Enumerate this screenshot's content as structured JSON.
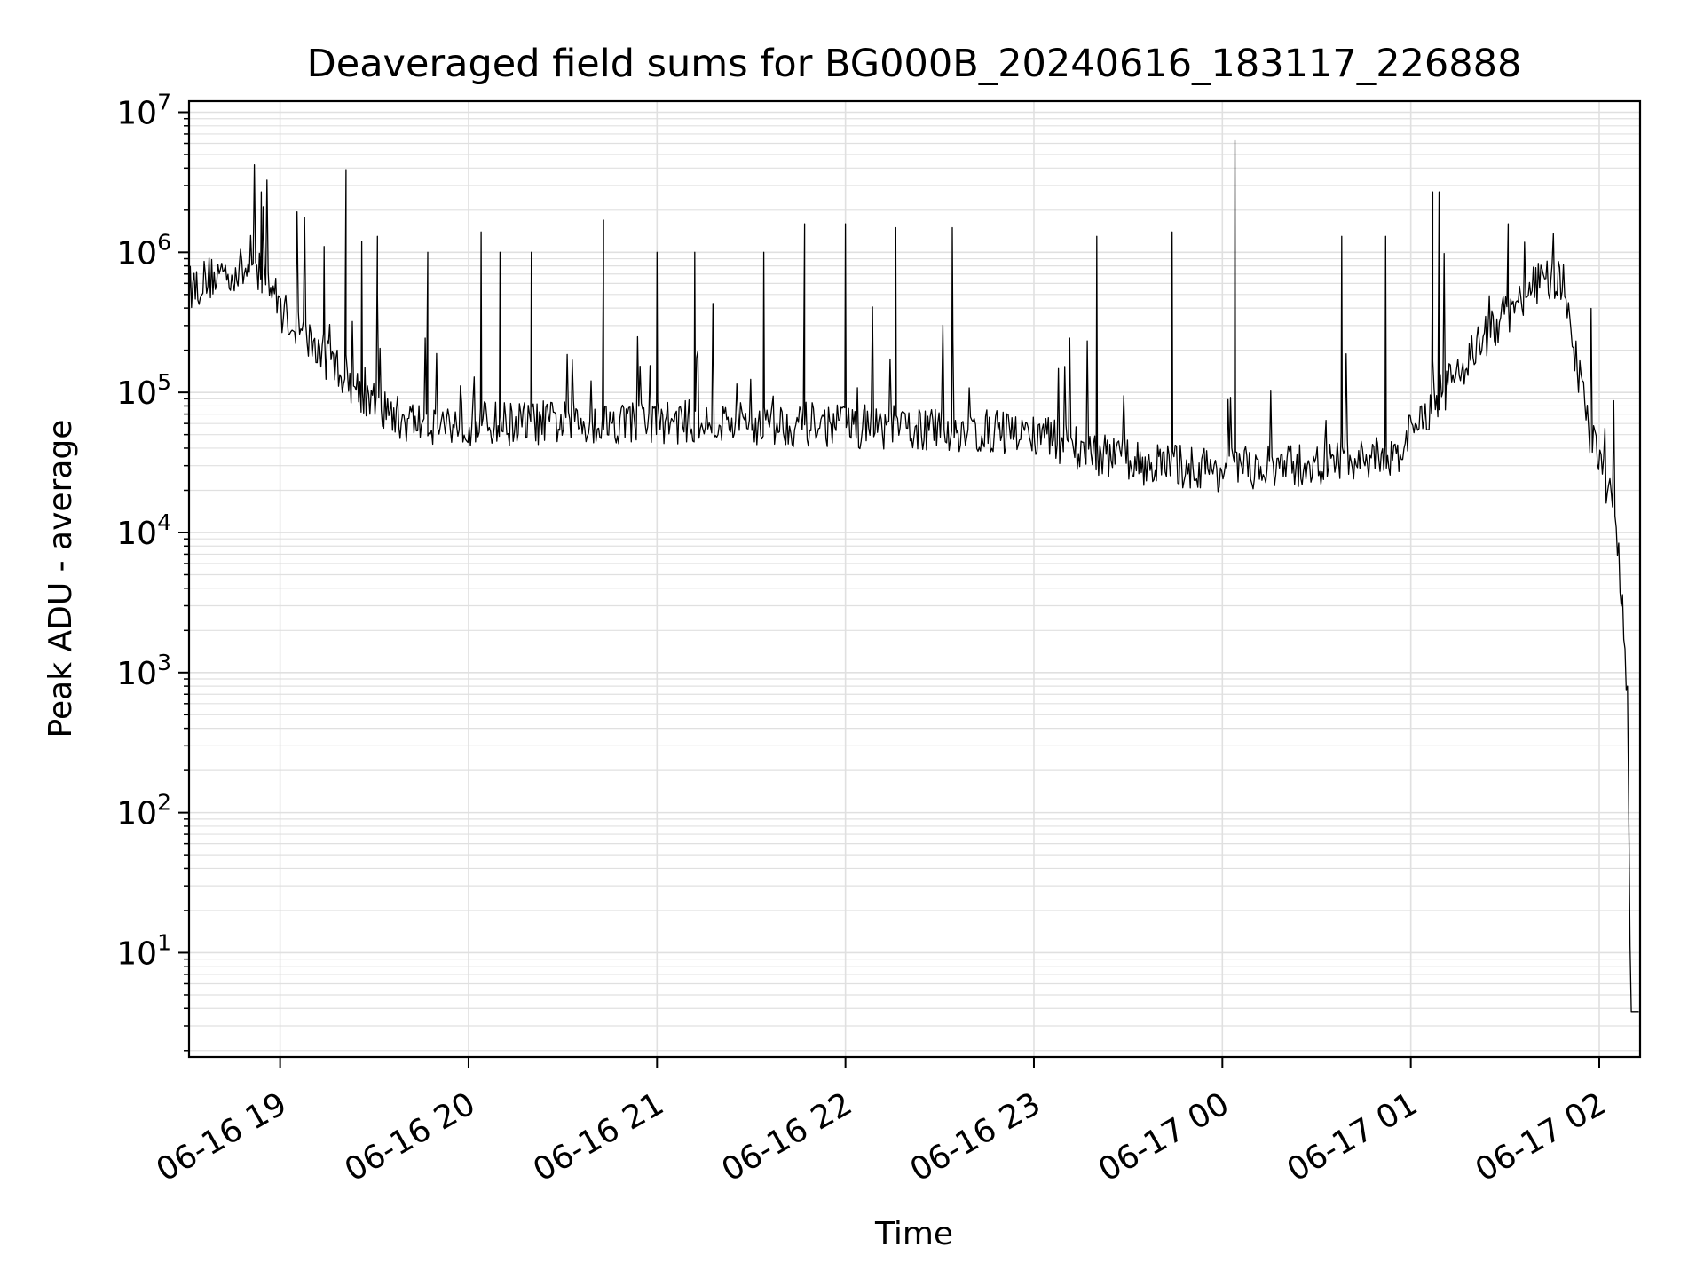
{
  "chart_data": {
    "type": "line",
    "title": "Deaveraged field sums for BG000B_20240616_183117_226888",
    "xlabel": "Time",
    "ylabel": "Peak ADU - average",
    "y_scale": "log",
    "ylim": [
      1.8,
      12000000
    ],
    "xlim": [
      "06-16 18:31",
      "06-17 02:13"
    ],
    "grid": true,
    "line_color": "#000000",
    "grid_color": "#e0e0e0",
    "x_ticks": [
      {
        "time": "06-16 19:00",
        "label": "06-16 19"
      },
      {
        "time": "06-16 20:00",
        "label": "06-16 20"
      },
      {
        "time": "06-16 21:00",
        "label": "06-16 21"
      },
      {
        "time": "06-16 22:00",
        "label": "06-16 22"
      },
      {
        "time": "06-16 23:00",
        "label": "06-16 23"
      },
      {
        "time": "06-17 00:00",
        "label": "06-17 00"
      },
      {
        "time": "06-17 01:00",
        "label": "06-17 01"
      },
      {
        "time": "06-17 02:00",
        "label": "06-17 02"
      }
    ],
    "y_ticks": [
      {
        "value": 10,
        "base": "10",
        "exp": "1"
      },
      {
        "value": 100,
        "base": "10",
        "exp": "2"
      },
      {
        "value": 1000,
        "base": "10",
        "exp": "3"
      },
      {
        "value": 10000,
        "base": "10",
        "exp": "4"
      },
      {
        "value": 100000,
        "base": "10",
        "exp": "5"
      },
      {
        "value": 1000000,
        "base": "10",
        "exp": "6"
      },
      {
        "value": 10000000,
        "base": "10",
        "exp": "7"
      }
    ],
    "series": [
      {
        "baseline": [
          {
            "x": "06-16 18:31",
            "y": 550000
          },
          {
            "x": "06-16 18:40",
            "y": 700000
          },
          {
            "x": "06-16 18:50",
            "y": 750000
          },
          {
            "x": "06-16 18:56",
            "y": 650000
          },
          {
            "x": "06-16 19:00",
            "y": 400000
          },
          {
            "x": "06-16 19:10",
            "y": 220000
          },
          {
            "x": "06-16 19:20",
            "y": 140000
          },
          {
            "x": "06-16 19:30",
            "y": 80000
          },
          {
            "x": "06-16 19:40",
            "y": 62000
          },
          {
            "x": "06-16 20:00",
            "y": 60000
          },
          {
            "x": "06-16 21:00",
            "y": 62000
          },
          {
            "x": "06-16 22:00",
            "y": 58000
          },
          {
            "x": "06-16 23:00",
            "y": 50000
          },
          {
            "x": "06-16 23:30",
            "y": 32000
          },
          {
            "x": "06-17 00:00",
            "y": 28000
          },
          {
            "x": "06-17 00:30",
            "y": 30000
          },
          {
            "x": "06-17 00:55",
            "y": 35000
          },
          {
            "x": "06-17 01:00",
            "y": 50000
          },
          {
            "x": "06-17 01:20",
            "y": 200000
          },
          {
            "x": "06-17 01:40",
            "y": 600000
          },
          {
            "x": "06-17 01:48",
            "y": 600000
          },
          {
            "x": "06-17 01:52",
            "y": 200000
          },
          {
            "x": "06-17 01:57",
            "y": 50000
          },
          {
            "x": "06-17 02:05",
            "y": 15000
          },
          {
            "x": "06-17 02:09",
            "y": 800
          },
          {
            "x": "06-17 02:10",
            "y": 3.8
          },
          {
            "x": "06-17 02:13",
            "y": 3.8
          }
        ],
        "spikes": [
          {
            "x": "06-16 18:54",
            "y": 2700000
          },
          {
            "x": "06-16 19:14",
            "y": 1100000
          },
          {
            "x": "06-16 19:21",
            "y": 3900000
          },
          {
            "x": "06-16 19:26",
            "y": 1200000
          },
          {
            "x": "06-16 19:31",
            "y": 1300000
          },
          {
            "x": "06-16 19:47",
            "y": 1000000
          },
          {
            "x": "06-16 20:04",
            "y": 1400000
          },
          {
            "x": "06-16 20:10",
            "y": 1000000
          },
          {
            "x": "06-16 20:20",
            "y": 1000000
          },
          {
            "x": "06-16 20:43",
            "y": 1700000
          },
          {
            "x": "06-16 21:00",
            "y": 1000000
          },
          {
            "x": "06-16 21:12",
            "y": 1000000
          },
          {
            "x": "06-16 21:34",
            "y": 1000000
          },
          {
            "x": "06-16 21:47",
            "y": 1600000
          },
          {
            "x": "06-16 22:00",
            "y": 1600000
          },
          {
            "x": "06-16 22:16",
            "y": 1500000
          },
          {
            "x": "06-16 22:34",
            "y": 1500000
          },
          {
            "x": "06-16 23:20",
            "y": 1300000
          },
          {
            "x": "06-16 23:44",
            "y": 1400000
          },
          {
            "x": "06-17 00:04",
            "y": 6300000
          },
          {
            "x": "06-17 00:38",
            "y": 1300000
          },
          {
            "x": "06-17 00:52",
            "y": 1300000
          },
          {
            "x": "06-17 01:07",
            "y": 2700000
          },
          {
            "x": "06-17 01:09",
            "y": 2700000
          },
          {
            "x": "06-17 01:31",
            "y": 1600000
          }
        ]
      }
    ]
  }
}
